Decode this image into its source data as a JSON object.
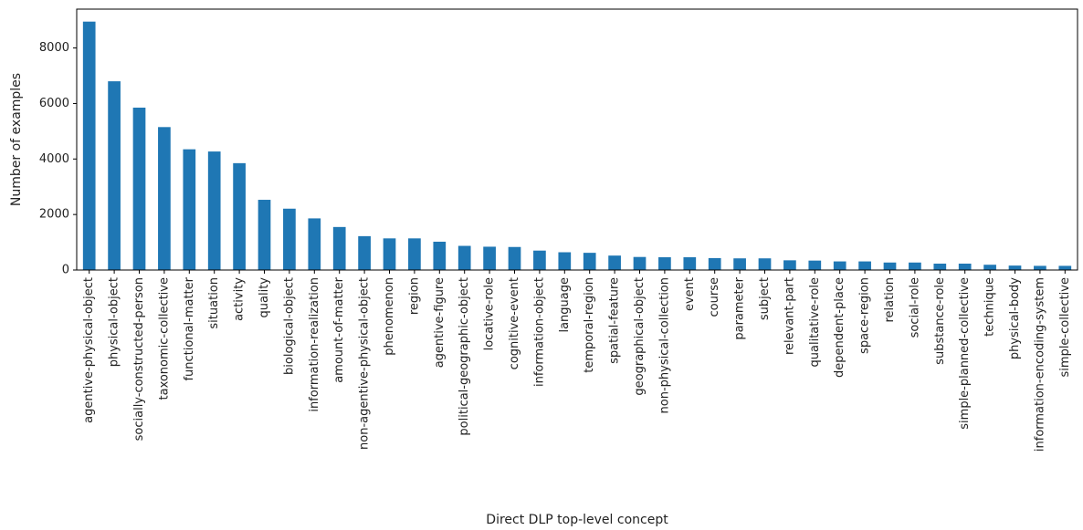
{
  "chart_data": {
    "type": "bar",
    "title": "",
    "xlabel": "Direct DLP top-level concept",
    "ylabel": "Number of examples",
    "ylim": [
      0,
      9400
    ],
    "yticks": [
      0,
      2000,
      4000,
      6000,
      8000
    ],
    "grid": false,
    "bar_color": "#1f77b4",
    "categories": [
      "agentive-physical-object",
      "physical-object",
      "socially-constructed-person",
      "taxonomic-collective",
      "functional-matter",
      "situation",
      "activity",
      "quality",
      "biological-object",
      "information-realization",
      "amount-of-matter",
      "non-agentive-physical-object",
      "phenomenon",
      "region",
      "agentive-figure",
      "political-geographic-object",
      "locative-role",
      "cognitive-event",
      "information-object",
      "language",
      "temporal-region",
      "spatial-feature",
      "geographical-object",
      "non-physical-collection",
      "event",
      "course",
      "parameter",
      "subject",
      "relevant-part",
      "qualitative-role",
      "dependent-place",
      "space-region",
      "relation",
      "social-role",
      "substance-role",
      "simple-planned-collective",
      "technique",
      "physical-body",
      "information-encoding-system",
      "simple-collective"
    ],
    "values": [
      8950,
      6800,
      5850,
      5150,
      4350,
      4270,
      3850,
      2530,
      2210,
      1860,
      1550,
      1220,
      1140,
      1140,
      1020,
      870,
      840,
      830,
      700,
      640,
      620,
      520,
      470,
      460,
      460,
      430,
      420,
      420,
      350,
      340,
      310,
      310,
      270,
      270,
      230,
      230,
      190,
      160,
      150,
      150
    ]
  }
}
